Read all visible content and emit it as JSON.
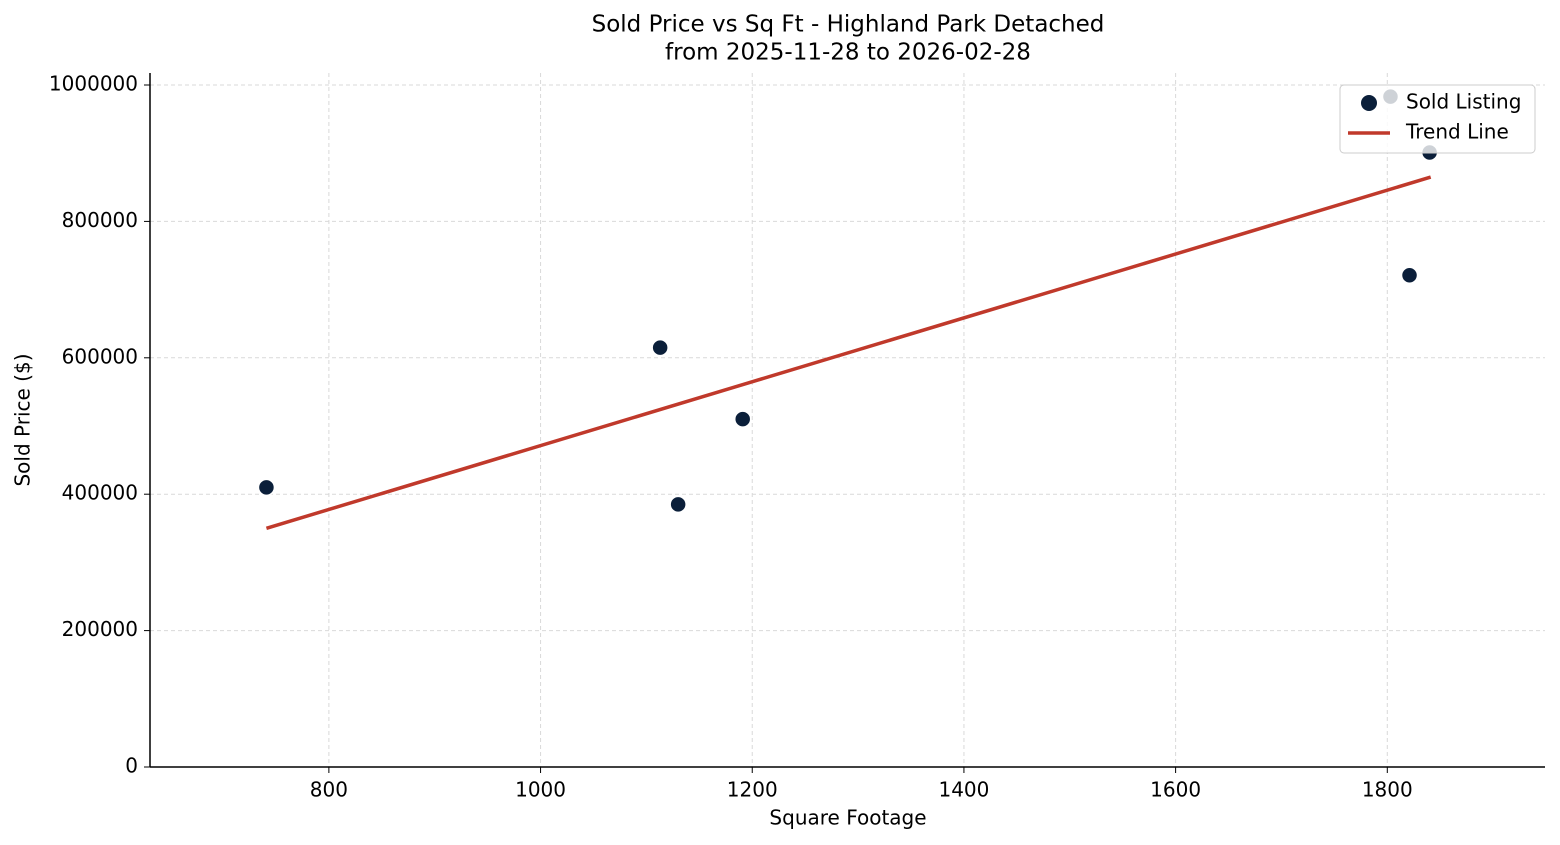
{
  "chart_data": {
    "type": "scatter",
    "title": "Sold Price vs Sq Ft - Highland Park Detached",
    "subtitle": "from 2025-11-28 to 2026-02-28",
    "x_label": "Square Footage",
    "y_label": "Sold Price ($)",
    "xlim": [
      631,
      1949
    ],
    "ylim": [
      0,
      1017600
    ],
    "xticks": [
      800,
      1000,
      1200,
      1400,
      1600,
      1800
    ],
    "yticks": [
      0,
      200000,
      400000,
      600000,
      800000,
      1000000
    ],
    "grid": true,
    "legend": "upper right",
    "series": [
      {
        "name": "Sold Listing",
        "type": "scatter",
        "color": "#0b1f3a",
        "x": [
          741,
          1113,
          1130,
          1191,
          1803,
          1821,
          1840
        ],
        "values": [
          410000,
          615000,
          385000,
          510000,
          983000,
          721000,
          901000
        ]
      },
      {
        "name": "Trend Line",
        "type": "line",
        "color": "#c0392b",
        "x": [
          741,
          1841
        ],
        "values": [
          350000,
          865000
        ]
      }
    ]
  }
}
